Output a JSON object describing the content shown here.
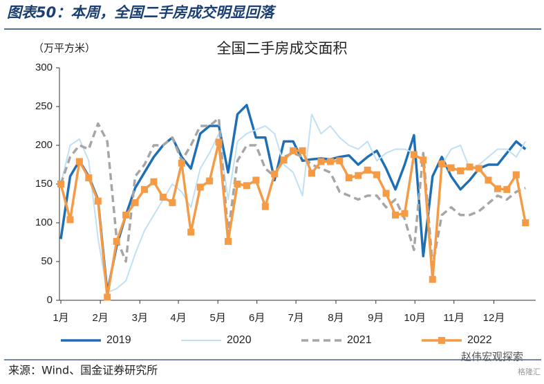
{
  "chart_data": {
    "type": "line",
    "figure_title": "图表50：本周，全国二手房成交明显回落",
    "title": "全国二手房成交面积",
    "unit_label": "（万平方米）",
    "source": "来源：Wind、国金证券研究所",
    "watermark": "赵伟宏观探索",
    "watermark_small": "格隆汇",
    "x": [
      1,
      2,
      3,
      4,
      5,
      6,
      7,
      8,
      9,
      10,
      11,
      12,
      13,
      14,
      15,
      16,
      17,
      18,
      19,
      20,
      21,
      22,
      23,
      24,
      25,
      26,
      27,
      28,
      29,
      30,
      31,
      32,
      33,
      34,
      35,
      36,
      37,
      38,
      39,
      40,
      41,
      42,
      43,
      44,
      45,
      46,
      47,
      48,
      49,
      50,
      51
    ],
    "xlim": [
      0.85,
      52.1
    ],
    "xticks": [
      {
        "value": 1,
        "label": "1月"
      },
      {
        "value": 5.25,
        "label": "2月"
      },
      {
        "value": 9.5,
        "label": "3月"
      },
      {
        "value": 13.65,
        "label": "4月"
      },
      {
        "value": 17.9,
        "label": "5月"
      },
      {
        "value": 22.1,
        "label": "6月"
      },
      {
        "value": 26.3,
        "label": "7月"
      },
      {
        "value": 30.6,
        "label": "8月"
      },
      {
        "value": 34.9,
        "label": "9月"
      },
      {
        "value": 39.1,
        "label": "10月"
      },
      {
        "value": 43.3,
        "label": "11月"
      },
      {
        "value": 47.6,
        "label": "12月"
      }
    ],
    "ylim": [
      0,
      300
    ],
    "yticks": [
      0,
      50,
      100,
      150,
      200,
      250,
      300
    ],
    "series": [
      {
        "name": "2019",
        "color": "#1f6fb5",
        "width": 3.5,
        "dash": false,
        "marker": "none",
        "values": [
          79,
          160,
          180,
          160,
          130,
          10,
          70,
          110,
          145,
          165,
          185,
          200,
          210,
          185,
          170,
          215,
          225,
          225,
          165,
          240,
          252,
          210,
          210,
          155,
          205,
          205,
          180,
          182,
          183,
          182,
          185,
          187,
          175,
          185,
          193,
          170,
          143,
          175,
          213,
          57,
          160,
          185,
          160,
          143,
          155,
          170,
          175,
          175,
          190,
          205,
          195
        ]
      },
      {
        "name": "2020",
        "color": "#bfe0f5",
        "width": 2,
        "dash": false,
        "marker": "none",
        "values": [
          150,
          200,
          208,
          180,
          80,
          10,
          15,
          25,
          60,
          90,
          110,
          130,
          150,
          140,
          120,
          170,
          190,
          215,
          130,
          205,
          215,
          220,
          225,
          215,
          175,
          165,
          135,
          240,
          215,
          225,
          210,
          200,
          195,
          205,
          180,
          190,
          195,
          195,
          190,
          180,
          35,
          175,
          195,
          200,
          170,
          175,
          185,
          195,
          195,
          185,
          205
        ]
      },
      {
        "name": "2021",
        "color": "#a6a6a6",
        "width": 3.5,
        "dash": true,
        "marker": "none",
        "values": [
          150,
          185,
          200,
          195,
          228,
          205,
          80,
          50,
          160,
          175,
          200,
          200,
          210,
          180,
          200,
          225,
          225,
          235,
          85,
          180,
          200,
          200,
          170,
          160,
          185,
          190,
          185,
          175,
          170,
          165,
          140,
          135,
          130,
          135,
          135,
          120,
          130,
          105,
          65,
          190,
          45,
          110,
          120,
          110,
          110,
          115,
          125,
          135,
          130,
          140,
          145
        ]
      },
      {
        "name": "2022",
        "color": "#f59a45",
        "width": 3.5,
        "dash": false,
        "marker": "square",
        "values": [
          150,
          104,
          179,
          158,
          128,
          4,
          76,
          110,
          126,
          143,
          153,
          133,
          126,
          177,
          88,
          146,
          154,
          204,
          76,
          150,
          148,
          155,
          121,
          163,
          181,
          193,
          193,
          164,
          179,
          179,
          180,
          158,
          161,
          168,
          162,
          138,
          110,
          112,
          188,
          181,
          27,
          176,
          171,
          167,
          172,
          170,
          155,
          144,
          143,
          162,
          100
        ]
      }
    ]
  }
}
